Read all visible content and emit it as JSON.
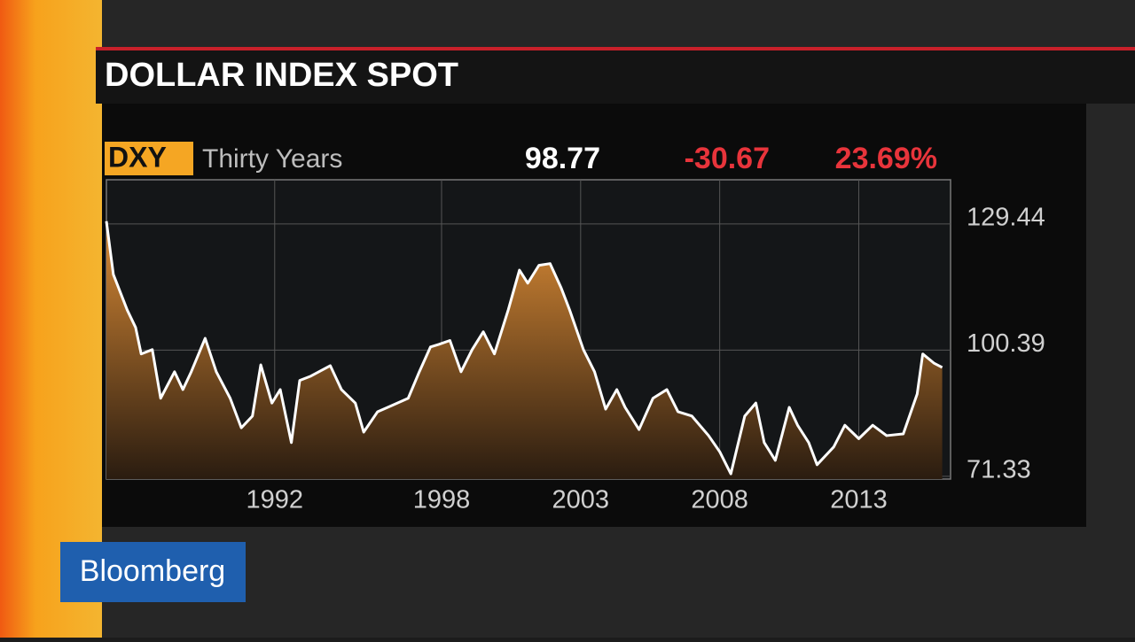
{
  "brand": "Bloomberg",
  "chart_data": {
    "type": "line",
    "title": "DOLLAR INDEX SPOT",
    "header": {
      "ticker": "DXY",
      "period": "Thirty Years",
      "last": "98.77",
      "change": "-30.67",
      "change_pct": "23.69%"
    },
    "x": [
      1985.95,
      1986.2,
      1986.7,
      1987.0,
      1987.2,
      1987.6,
      1987.9,
      1988.4,
      1988.7,
      1989.0,
      1989.5,
      1989.9,
      1990.4,
      1990.8,
      1991.2,
      1991.5,
      1991.9,
      1992.2,
      1992.6,
      1992.9,
      1993.3,
      1994.0,
      1994.4,
      1994.9,
      1995.2,
      1995.7,
      1996.2,
      1996.8,
      1997.2,
      1997.6,
      1997.9,
      1998.3,
      1998.7,
      1999.1,
      1999.5,
      1999.9,
      2000.4,
      2000.8,
      2001.1,
      2001.5,
      2001.9,
      2002.3,
      2002.6,
      2003.1,
      2003.5,
      2003.9,
      2004.3,
      2004.6,
      2005.1,
      2005.6,
      2006.1,
      2006.5,
      2007.0,
      2007.6,
      2008.0,
      2008.4,
      2008.9,
      2009.3,
      2009.6,
      2010.0,
      2010.5,
      2010.8,
      2011.2,
      2011.5,
      2012.1,
      2012.5,
      2013.0,
      2013.5,
      2014.0,
      2014.6,
      2015.1,
      2015.3,
      2015.7,
      2016.0
    ],
    "values": [
      130.05,
      117.8,
      109.6,
      105.6,
      99.5,
      100.5,
      89.3,
      95.4,
      91.3,
      95.4,
      103.1,
      95.4,
      89.3,
      82.5,
      85.2,
      97.0,
      88.2,
      91.3,
      79.1,
      93.4,
      94.4,
      96.8,
      91.3,
      88.2,
      81.5,
      86.2,
      87.6,
      89.3,
      95.4,
      101.1,
      101.7,
      102.6,
      95.4,
      100.5,
      104.6,
      99.5,
      109.7,
      118.8,
      115.8,
      119.9,
      120.3,
      114.7,
      109.7,
      100.5,
      95.4,
      86.8,
      91.3,
      87.2,
      82.1,
      89.3,
      91.3,
      86.2,
      85.2,
      80.7,
      77.0,
      71.9,
      85.2,
      88.2,
      79.1,
      75.0,
      87.2,
      83.1,
      79.1,
      74.0,
      78.1,
      83.1,
      80.0,
      83.1,
      80.7,
      81.1,
      90.3,
      99.5,
      97.4,
      96.4
    ],
    "color": "#ffffff",
    "fill_color": "#c9772a",
    "xlim": [
      1985.95,
      2016.3
    ],
    "xticks": [
      1992,
      1998,
      2003,
      2008,
      2013
    ],
    "ylim": [
      70.7,
      139.6
    ],
    "yticks": [
      71.33,
      100.39,
      129.44
    ],
    "grid": true
  }
}
